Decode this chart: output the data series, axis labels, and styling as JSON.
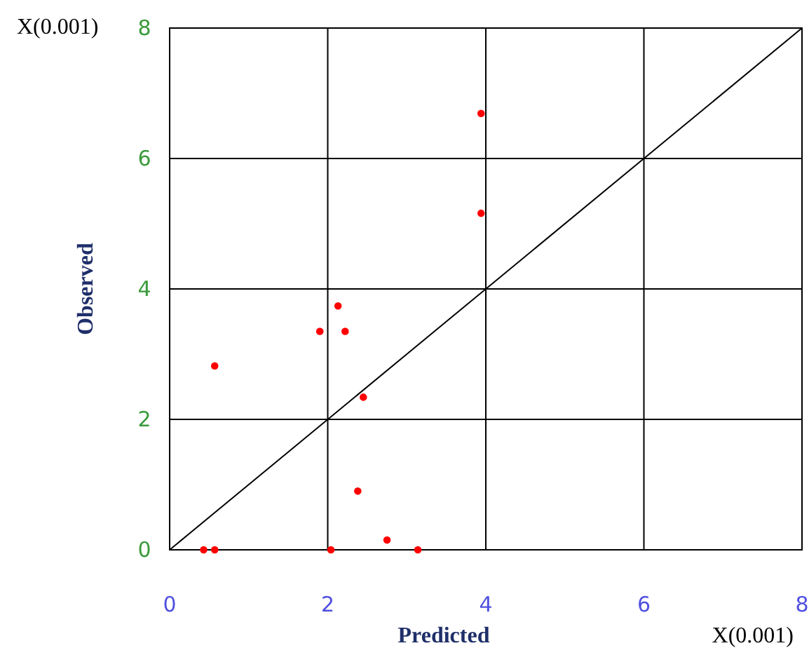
{
  "chart_data": {
    "type": "scatter",
    "xlabel": "Predicted",
    "ylabel": "Observed",
    "annotations": [
      "X(0.001)",
      "X(0.001)"
    ],
    "xlim": [
      0,
      8
    ],
    "ylim": [
      0,
      8
    ],
    "xticks": [
      0,
      2,
      4,
      6,
      8
    ],
    "yticks": [
      0,
      2,
      4,
      6,
      8
    ],
    "grid": true,
    "series": [
      {
        "type": "line",
        "color": "#000000",
        "x": [
          0,
          8
        ],
        "values": [
          0,
          8
        ]
      },
      {
        "marker": "circle",
        "color": "#ff0000",
        "x": [
          0.43,
          0.57,
          0.57,
          1.9,
          2.13,
          2.22,
          2.45,
          2.04,
          2.38,
          2.75,
          3.14,
          3.94,
          3.94
        ],
        "values": [
          0,
          0,
          2.82,
          3.35,
          3.74,
          3.35,
          2.34,
          0,
          0.9,
          0.15,
          0,
          6.69,
          5.16
        ]
      }
    ]
  }
}
